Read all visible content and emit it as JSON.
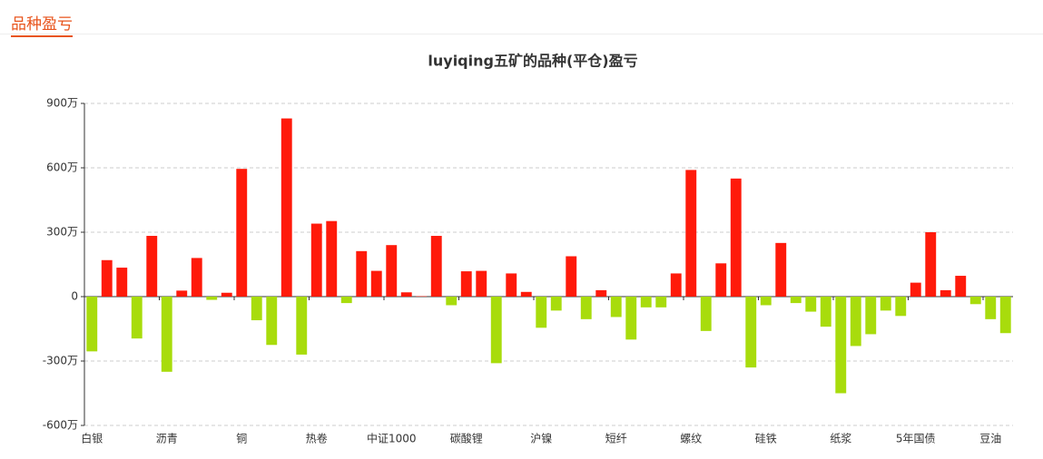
{
  "header": {
    "title": "品种盈亏"
  },
  "chart_data": {
    "type": "bar",
    "title": "luyiqing五矿的品种(平仓)盈亏",
    "categories": [
      "白银",
      null,
      null,
      null,
      null,
      "沥青",
      null,
      null,
      null,
      null,
      "铜",
      null,
      null,
      null,
      null,
      "热卷",
      null,
      null,
      null,
      null,
      "中证1000",
      null,
      null,
      null,
      null,
      "碳酸锂",
      null,
      null,
      null,
      null,
      "沪镍",
      null,
      null,
      null,
      null,
      "短纤",
      null,
      null,
      null,
      null,
      "螺纹",
      null,
      null,
      null,
      null,
      "硅铁",
      null,
      null,
      null,
      null,
      "纸浆",
      null,
      null,
      null,
      null,
      "5年国债",
      null,
      null,
      null,
      null,
      "豆油",
      null
    ],
    "values": [
      -255,
      170,
      135,
      -195,
      283,
      -350,
      28,
      180,
      -15,
      18,
      595,
      -110,
      -225,
      830,
      -270,
      340,
      352,
      -30,
      212,
      120,
      240,
      20,
      2,
      283,
      -40,
      118,
      120,
      -310,
      108,
      22,
      -145,
      -65,
      188,
      -105,
      30,
      -95,
      -200,
      -50,
      -50,
      108,
      590,
      -160,
      155,
      550,
      -330,
      -40,
      250,
      -30,
      -70,
      -140,
      -450,
      -230,
      -175,
      -65,
      -90,
      65,
      300,
      30,
      97,
      -35,
      -105,
      -170
    ],
    "positive_color": "#ff1a0a",
    "negative_color": "#a8dc0c",
    "ylim": [
      -600,
      900
    ],
    "yticks": [
      {
        "value": -600,
        "label": "-600万"
      },
      {
        "value": -300,
        "label": "-300万"
      },
      0,
      {
        "value": 300,
        "label": "300万"
      },
      {
        "value": 600,
        "label": "600万"
      },
      {
        "value": 900,
        "label": "900万"
      }
    ],
    "grid": true
  }
}
